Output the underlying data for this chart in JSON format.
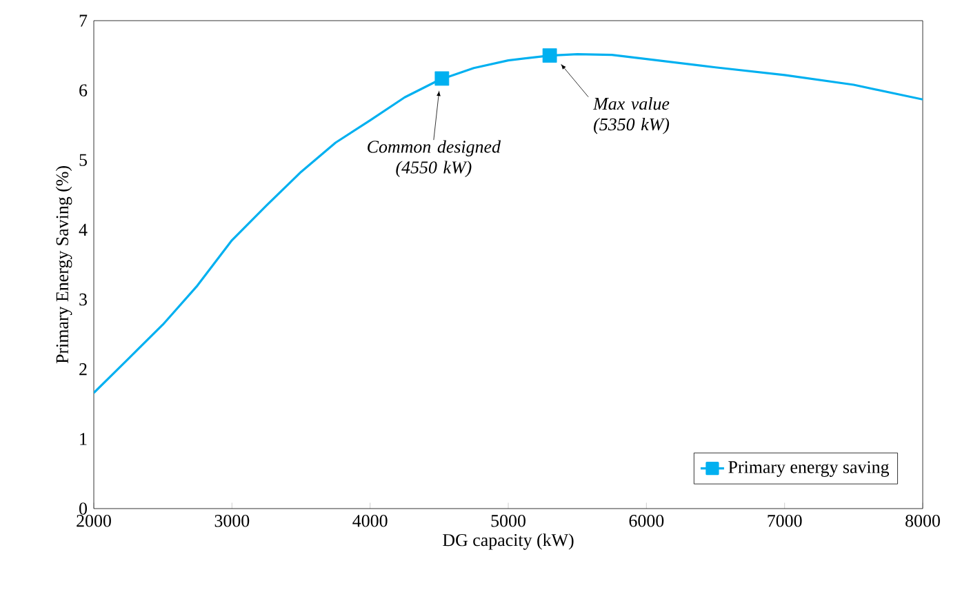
{
  "chart_data": {
    "type": "line",
    "xlabel": "DG capacity  (kW)",
    "ylabel": "Primary  Energy  Saving  (%)",
    "xlim": [
      2000,
      8000
    ],
    "xticks": [
      2000,
      3000,
      4000,
      5000,
      6000,
      7000,
      8000
    ],
    "ylim": [
      0,
      7
    ],
    "yticks": [
      0,
      1,
      2,
      3,
      4,
      5,
      6,
      7
    ],
    "grid": false,
    "legend": "bottom right",
    "series": [
      {
        "name": "Primary energy saving",
        "color": "#00b0f0",
        "marker": "none",
        "x": [
          2000,
          2250,
          2500,
          2750,
          3000,
          3250,
          3500,
          3750,
          4000,
          4250,
          4500,
          4750,
          5000,
          5300,
          5500,
          5750,
          6000,
          6500,
          7000,
          7500,
          8000
        ],
        "values": [
          1.66,
          2.15,
          2.64,
          3.2,
          3.85,
          4.35,
          4.83,
          5.25,
          5.57,
          5.9,
          6.15,
          6.32,
          6.43,
          6.5,
          6.52,
          6.51,
          6.45,
          6.33,
          6.22,
          6.08,
          5.87
        ]
      },
      {
        "type": "scatter",
        "color": "#00b0f0",
        "marker": "square",
        "x": [
          4520,
          5300
        ],
        "values": [
          6.17,
          6.5
        ]
      }
    ],
    "annotations": [
      {
        "text": "*Common designed (4550 kW)*",
        "x": 4500,
        "y": 6.0
      },
      {
        "text": "*Max value (5350 kW)*",
        "x": 5380,
        "y": 6.38
      }
    ]
  }
}
